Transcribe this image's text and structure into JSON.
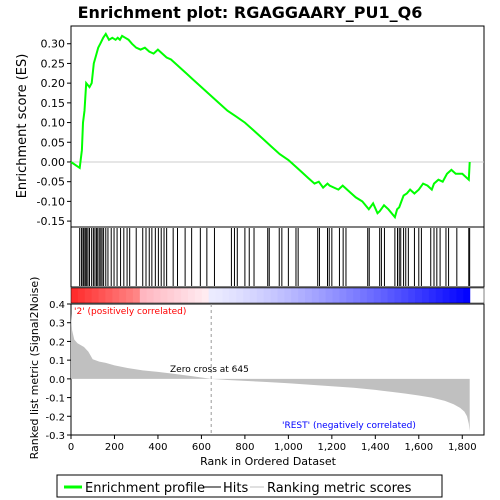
{
  "chart_data": [
    {
      "type": "line",
      "panel": "enrichment",
      "title": "Enrichment plot: RGAGGAARY_PU1_Q6",
      "ylabel": "Enrichment score (ES)",
      "ylim": [
        -0.165,
        0.345
      ],
      "yticks": [
        -0.15,
        -0.1,
        -0.05,
        0.0,
        0.05,
        0.1,
        0.15,
        0.2,
        0.25,
        0.3
      ],
      "ytick_labels": [
        "-0.15",
        "-0.10",
        "-0.05",
        "0.00",
        "0.05",
        "0.10",
        "0.15",
        "0.20",
        "0.25",
        "0.30"
      ],
      "xlim": [
        0,
        1900
      ],
      "series": [
        {
          "name": "Enrichment profile",
          "color": "#00ff00",
          "x": [
            0,
            40,
            50,
            55,
            62,
            70,
            85,
            95,
            105,
            115,
            125,
            135,
            148,
            160,
            175,
            190,
            205,
            215,
            225,
            235,
            250,
            265,
            280,
            300,
            320,
            340,
            360,
            380,
            400,
            420,
            440,
            460,
            480,
            500,
            530,
            560,
            600,
            640,
            680,
            720,
            760,
            800,
            840,
            880,
            920,
            960,
            1000,
            1030,
            1060,
            1090,
            1120,
            1140,
            1160,
            1180,
            1190,
            1210,
            1230,
            1250,
            1270,
            1290,
            1310,
            1340,
            1370,
            1390,
            1410,
            1420,
            1440,
            1460,
            1490,
            1500,
            1510,
            1520,
            1530,
            1545,
            1560,
            1580,
            1600,
            1620,
            1640,
            1660,
            1670,
            1690,
            1710,
            1730,
            1750,
            1770,
            1800,
            1830,
            1834
          ],
          "y": [
            0.0,
            -0.015,
            0.03,
            0.1,
            0.13,
            0.2,
            0.19,
            0.2,
            0.25,
            0.27,
            0.29,
            0.3,
            0.315,
            0.325,
            0.31,
            0.315,
            0.31,
            0.315,
            0.31,
            0.32,
            0.315,
            0.31,
            0.3,
            0.29,
            0.285,
            0.29,
            0.28,
            0.275,
            0.285,
            0.275,
            0.265,
            0.26,
            0.25,
            0.24,
            0.225,
            0.21,
            0.19,
            0.17,
            0.15,
            0.13,
            0.115,
            0.1,
            0.08,
            0.06,
            0.04,
            0.02,
            0.005,
            -0.01,
            -0.025,
            -0.04,
            -0.055,
            -0.05,
            -0.065,
            -0.055,
            -0.06,
            -0.065,
            -0.07,
            -0.06,
            -0.07,
            -0.08,
            -0.09,
            -0.1,
            -0.12,
            -0.105,
            -0.13,
            -0.125,
            -0.11,
            -0.12,
            -0.14,
            -0.12,
            -0.115,
            -0.1,
            -0.085,
            -0.08,
            -0.07,
            -0.08,
            -0.07,
            -0.055,
            -0.06,
            -0.07,
            -0.055,
            -0.045,
            -0.05,
            -0.03,
            -0.02,
            -0.03,
            -0.03,
            -0.045,
            0.0
          ]
        }
      ]
    },
    {
      "type": "scatter",
      "panel": "hits",
      "series": [
        {
          "name": "Hits",
          "color": "#000000",
          "x": [
            40,
            48,
            55,
            60,
            66,
            72,
            78,
            85,
            95,
            103,
            110,
            117,
            123,
            130,
            137,
            143,
            150,
            160,
            170,
            185,
            198,
            212,
            228,
            243,
            258,
            270,
            300,
            330,
            345,
            360,
            372,
            388,
            402,
            415,
            428,
            440,
            470,
            490,
            525,
            555,
            595,
            625,
            660,
            738,
            752,
            765,
            800,
            820,
            842,
            905,
            912,
            958,
            970,
            1000,
            1035,
            1045,
            1135,
            1143,
            1180,
            1188,
            1200,
            1235,
            1252,
            1265,
            1365,
            1372,
            1420,
            1428,
            1442,
            1490,
            1502,
            1510,
            1517,
            1530,
            1540,
            1552,
            1580,
            1600,
            1612,
            1655,
            1670,
            1683,
            1698,
            1725,
            1737,
            1775,
            1830,
            1834
          ]
        }
      ]
    },
    {
      "type": "area",
      "panel": "ranked-metric",
      "xlabel": "Rank in Ordered Dataset",
      "ylabel": "Ranked list metric (Signal2Noise)",
      "ylim": [
        -0.3,
        0.4
      ],
      "yticks": [
        -0.3,
        -0.2,
        -0.1,
        0.0,
        0.1,
        0.2,
        0.3,
        0.4
      ],
      "ytick_labels": [
        "-0.3",
        "-0.2",
        "-0.1",
        "0.0",
        "0.1",
        "0.2",
        "0.3",
        "0.4"
      ],
      "xticks": [
        0,
        200,
        400,
        600,
        800,
        1000,
        1200,
        1400,
        1600,
        1800
      ],
      "xtick_labels": [
        "0",
        "200",
        "400",
        "600",
        "800",
        "1,000",
        "1,200",
        "1,400",
        "1,600",
        "1,800"
      ],
      "zero_cross": 645,
      "series": [
        {
          "name": "Ranking metric scores",
          "color": "#c0c0c0",
          "x": [
            0,
            5,
            15,
            30,
            60,
            80,
            100,
            130,
            160,
            200,
            260,
            330,
            400,
            480,
            560,
            645,
            720,
            800,
            900,
            1000,
            1100,
            1200,
            1300,
            1400,
            1480,
            1540,
            1600,
            1660,
            1720,
            1760,
            1790,
            1810,
            1822,
            1830,
            1834
          ],
          "y": [
            0.35,
            0.26,
            0.21,
            0.19,
            0.17,
            0.145,
            0.105,
            0.092,
            0.085,
            0.072,
            0.058,
            0.045,
            0.037,
            0.026,
            0.014,
            0.0,
            -0.006,
            -0.011,
            -0.017,
            -0.023,
            -0.031,
            -0.039,
            -0.048,
            -0.059,
            -0.07,
            -0.079,
            -0.089,
            -0.1,
            -0.118,
            -0.136,
            -0.155,
            -0.175,
            -0.2,
            -0.24,
            -0.28
          ]
        }
      ],
      "annotations": [
        {
          "text": "Zero cross at 645"
        },
        {
          "text": "'2' (positively correlated)",
          "color": "#ff0000"
        },
        {
          "text": "'REST' (negatively correlated)",
          "color": "#0000ff"
        }
      ]
    }
  ],
  "legend": {
    "items": [
      {
        "label": "Enrichment profile",
        "color": "#00ff00"
      },
      {
        "label": "Hits",
        "color": "#000000"
      },
      {
        "label": "Ranking metric scores",
        "color": "#c0c0c0"
      }
    ]
  }
}
